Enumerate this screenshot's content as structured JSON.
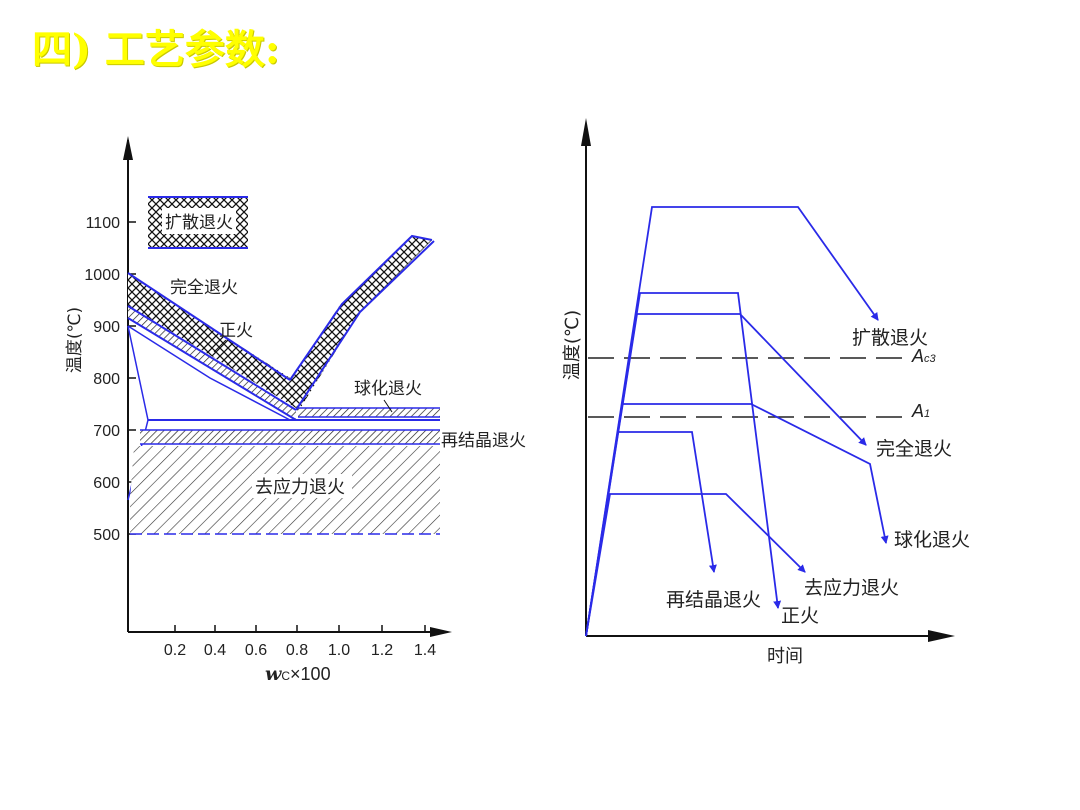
{
  "slide": {
    "title": "四) 工艺参数:"
  },
  "left_diagram": {
    "y_axis_label": "温度(℃)",
    "y_ticks": [
      "1100",
      "1000",
      "900",
      "800",
      "700",
      "600",
      "500"
    ],
    "x_ticks": [
      "0.2",
      "0.4",
      "0.6",
      "0.8",
      "1.0",
      "1.2",
      "1.4"
    ],
    "x_axis_label_italic": "w",
    "x_axis_label_sub": "C",
    "x_axis_label_rest": "×100",
    "regions": {
      "diffusion": "扩散退火",
      "full": "完全退火",
      "normalize": "正火",
      "spheroidize": "球化退火",
      "recrystallize": "再结晶退火",
      "stress_relief": "去应力退火"
    }
  },
  "right_diagram": {
    "y_axis_label": "温度(℃)",
    "x_axis_label": "时间",
    "ac3_main": "A",
    "ac3_sub": "c3",
    "a1_main": "A",
    "a1_sub": "1",
    "curves": {
      "diffusion": "扩散退火",
      "full": "完全退火",
      "spheroidize": "球化退火",
      "stress_relief": "去应力退火",
      "recrystallize": "再结晶退火",
      "normalize": "正火"
    }
  },
  "colors": {
    "title": "#ffff00",
    "curve_blue": "#2a2ae8",
    "axis": "#111111"
  }
}
